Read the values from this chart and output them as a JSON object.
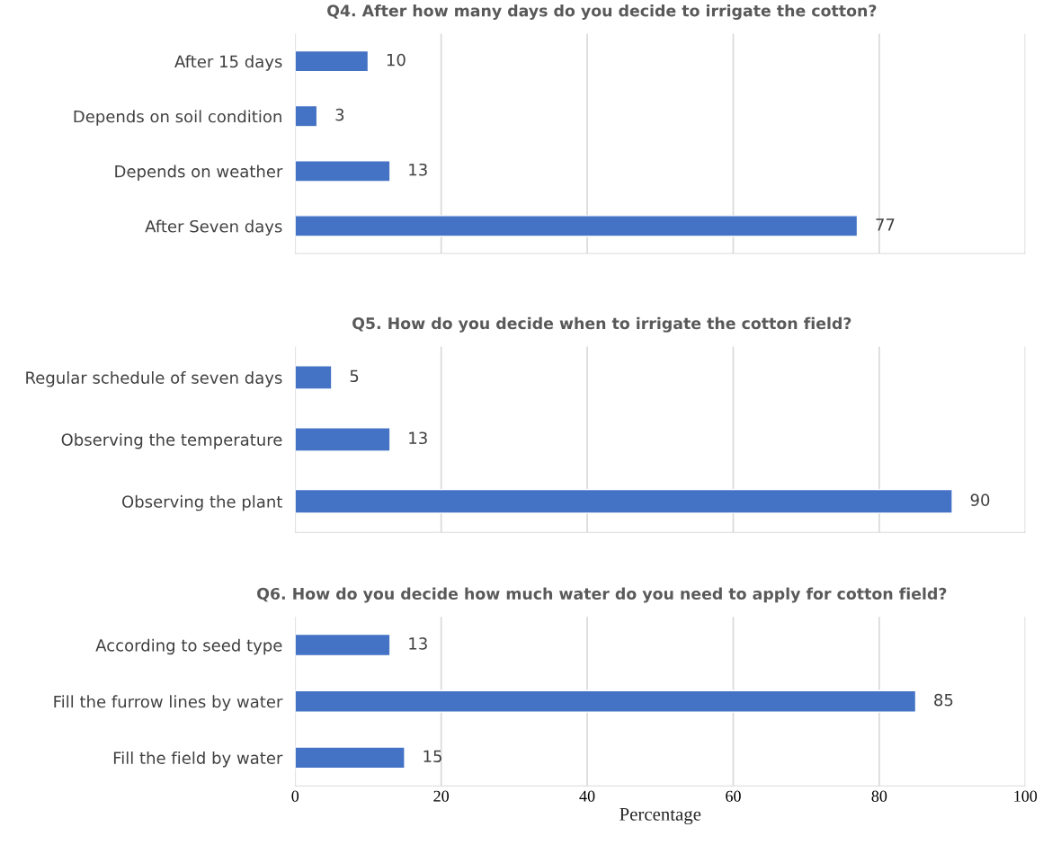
{
  "chart_data": [
    {
      "type": "bar",
      "orientation": "horizontal",
      "title": "Q4. After how many days do you decide to irrigate the cotton?",
      "categories": [
        "After 15 days",
        "Depends on soil condition",
        "Depends on weather",
        "After Seven days"
      ],
      "values": [
        10,
        3,
        13,
        77
      ],
      "color": "#4472c4",
      "data_labels": true,
      "xlim": [
        0,
        100
      ],
      "xticks": [
        0,
        20,
        40,
        60,
        80,
        100
      ],
      "grid": "x",
      "tick_labels": "y"
    },
    {
      "type": "bar",
      "orientation": "horizontal",
      "title": "Q5. How do you decide when to irrigate the cotton field?",
      "categories": [
        "Regular schedule of seven days",
        "Observing the temperature",
        "Observing the plant"
      ],
      "values": [
        5,
        13,
        90
      ],
      "color": "#4472c4",
      "data_labels": true,
      "xlim": [
        0,
        100
      ],
      "xticks": [
        0,
        20,
        40,
        60,
        80,
        100
      ],
      "grid": "x",
      "tick_labels": "y"
    },
    {
      "type": "bar",
      "orientation": "horizontal",
      "title": "Q6. How do you decide how much water do you need to apply for cotton field?",
      "xlabel": "Percentage",
      "categories": [
        "According to seed type",
        "Fill the furrow lines by water",
        "Fill the field by water"
      ],
      "values": [
        13,
        85,
        15
      ],
      "color": "#4472c4",
      "data_labels": true,
      "xlim": [
        0,
        100
      ],
      "xticks": [
        0,
        20,
        40,
        60,
        80,
        100
      ],
      "grid": "x"
    }
  ]
}
